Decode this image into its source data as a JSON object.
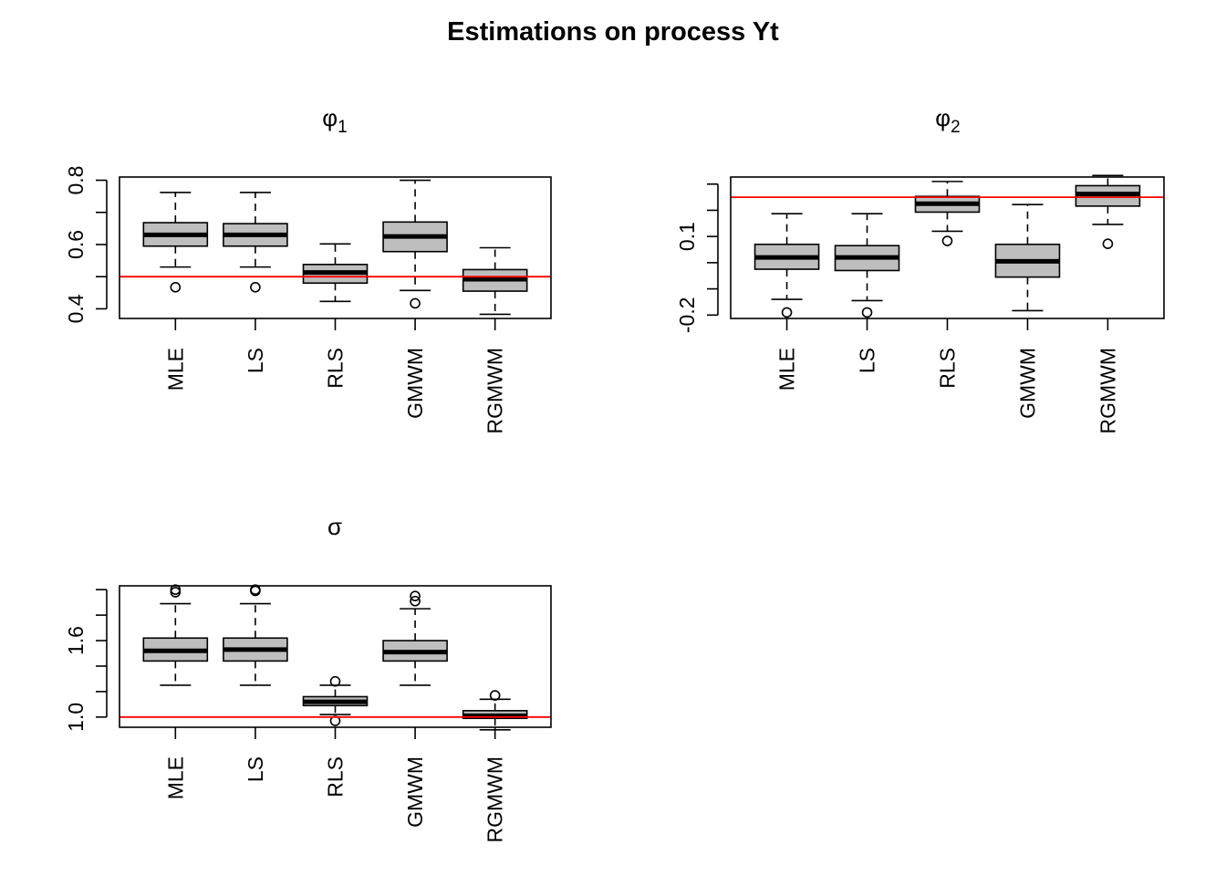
{
  "figure": {
    "title": "Estimations on process Yt"
  },
  "chart_data": [
    {
      "type": "boxplot",
      "title": "φ",
      "title_sub": "1",
      "categories": [
        "MLE",
        "LS",
        "RLS",
        "GMWM",
        "RGMWM"
      ],
      "ylim": [
        0.37,
        0.81
      ],
      "yticks": [
        0.4,
        0.5,
        0.6,
        0.7,
        0.8
      ],
      "ytick_labels": [
        "0.4",
        "",
        "0.6",
        "",
        "0.8"
      ],
      "reference_line": 0.5,
      "reference_color": "#ff0000",
      "box_fill": "#bebebe",
      "boxes": [
        {
          "whisker_low": 0.53,
          "q1": 0.595,
          "median": 0.63,
          "q3": 0.668,
          "whisker_high": 0.762,
          "outliers": [
            0.467
          ]
        },
        {
          "whisker_low": 0.53,
          "q1": 0.595,
          "median": 0.63,
          "q3": 0.665,
          "whisker_high": 0.762,
          "outliers": [
            0.467
          ]
        },
        {
          "whisker_low": 0.423,
          "q1": 0.48,
          "median": 0.513,
          "q3": 0.538,
          "whisker_high": 0.602,
          "outliers": []
        },
        {
          "whisker_low": 0.457,
          "q1": 0.578,
          "median": 0.625,
          "q3": 0.67,
          "whisker_high": 0.8,
          "outliers": [
            0.417
          ]
        },
        {
          "whisker_low": 0.383,
          "q1": 0.455,
          "median": 0.492,
          "q3": 0.522,
          "whisker_high": 0.59,
          "outliers": []
        }
      ]
    },
    {
      "type": "boxplot",
      "title": "φ",
      "title_sub": "2",
      "categories": [
        "MLE",
        "LS",
        "RLS",
        "GMWM",
        "RGMWM"
      ],
      "ylim": [
        -0.213,
        0.327
      ],
      "yticks": [
        -0.2,
        -0.1,
        0.0,
        0.1,
        0.2,
        0.3
      ],
      "ytick_labels": [
        "-0.2",
        "",
        "",
        "0.1",
        "",
        ""
      ],
      "reference_line": 0.25,
      "reference_color": "#ff0000",
      "box_fill": "#bebebe",
      "boxes": [
        {
          "whisker_low": -0.14,
          "q1": -0.025,
          "median": 0.02,
          "q3": 0.07,
          "whisker_high": 0.187,
          "outliers": [
            -0.19
          ]
        },
        {
          "whisker_low": -0.145,
          "q1": -0.03,
          "median": 0.02,
          "q3": 0.065,
          "whisker_high": 0.187,
          "outliers": [
            -0.19
          ]
        },
        {
          "whisker_low": 0.12,
          "q1": 0.193,
          "median": 0.225,
          "q3": 0.253,
          "whisker_high": 0.31,
          "outliers": [
            0.083
          ]
        },
        {
          "whisker_low": -0.183,
          "q1": -0.055,
          "median": 0.005,
          "q3": 0.07,
          "whisker_high": 0.222,
          "outliers": []
        },
        {
          "whisker_low": 0.146,
          "q1": 0.216,
          "median": 0.262,
          "q3": 0.294,
          "whisker_high": 0.333,
          "outliers": [
            0.072
          ]
        }
      ]
    },
    {
      "type": "boxplot",
      "title": "σ",
      "title_sub": "",
      "categories": [
        "MLE",
        "LS",
        "RLS",
        "GMWM",
        "RGMWM"
      ],
      "ylim": [
        0.92,
        2.03
      ],
      "yticks": [
        1.0,
        1.2,
        1.4,
        1.6,
        1.8,
        2.0
      ],
      "ytick_labels": [
        "1.0",
        "",
        "",
        "1.6",
        "",
        ""
      ],
      "reference_line": 1.0,
      "reference_color": "#ff0000",
      "box_fill": "#bebebe",
      "boxes": [
        {
          "whisker_low": 1.25,
          "q1": 1.44,
          "median": 1.52,
          "q3": 1.62,
          "whisker_high": 1.89,
          "outliers": [
            1.98,
            2.0
          ]
        },
        {
          "whisker_low": 1.25,
          "q1": 1.44,
          "median": 1.53,
          "q3": 1.62,
          "whisker_high": 1.89,
          "outliers": [
            1.99,
            2.0
          ]
        },
        {
          "whisker_low": 1.02,
          "q1": 1.09,
          "median": 1.12,
          "q3": 1.16,
          "whisker_high": 1.25,
          "outliers": [
            0.97,
            1.28
          ]
        },
        {
          "whisker_low": 1.25,
          "q1": 1.44,
          "median": 1.51,
          "q3": 1.6,
          "whisker_high": 1.85,
          "outliers": [
            1.91,
            1.95
          ]
        },
        {
          "whisker_low": 0.9,
          "q1": 0.99,
          "median": 1.01,
          "q3": 1.05,
          "whisker_high": 1.14,
          "outliers": [
            1.17
          ]
        }
      ]
    }
  ]
}
